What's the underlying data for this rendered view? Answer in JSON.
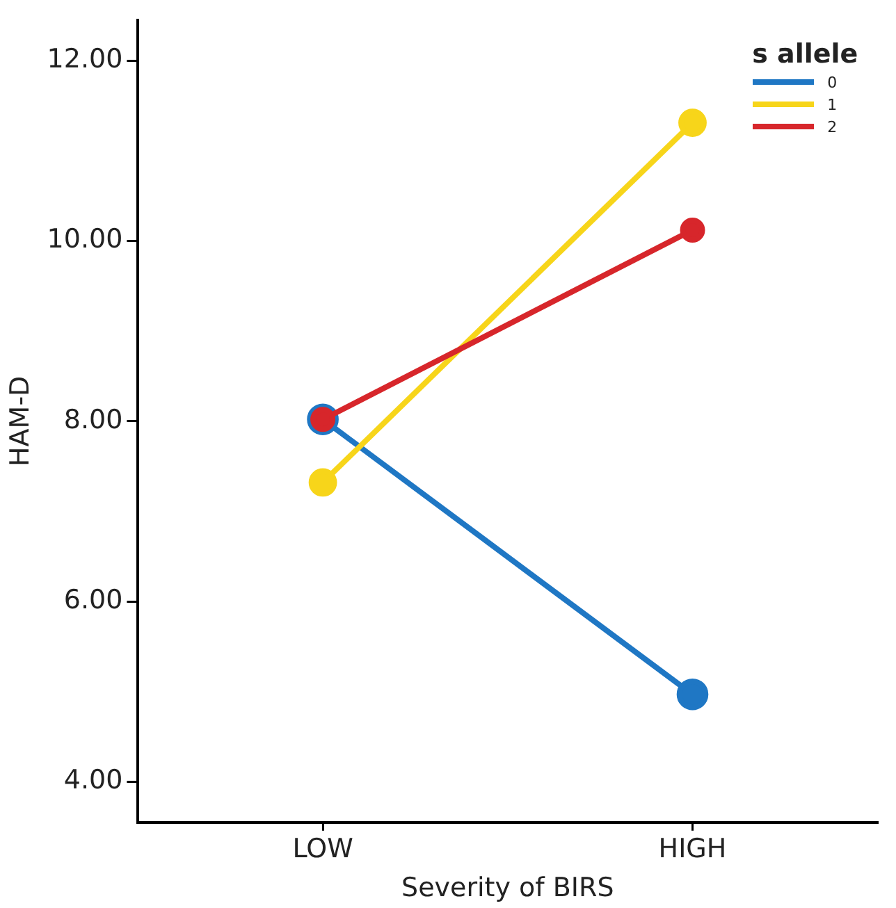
{
  "chart_data": {
    "type": "line",
    "xlabel": "Severity of BIRS",
    "ylabel": "HAM-D",
    "categories": [
      "LOW",
      "HIGH"
    ],
    "legend_title": "s allele",
    "legend": "top right",
    "marker": "circle",
    "line_style": "solid",
    "ylim": [
      3.55,
      12.45
    ],
    "yticks": [
      {
        "value": 4,
        "label": "4.00"
      },
      {
        "value": 6,
        "label": "6.00"
      },
      {
        "value": 8,
        "label": "8.00"
      },
      {
        "value": 10,
        "label": "10.00"
      },
      {
        "value": 12,
        "label": "12.00"
      }
    ],
    "series": [
      {
        "name": "0",
        "color": "#1f77c4",
        "values": [
          8.02,
          4.97
        ]
      },
      {
        "name": "1",
        "color": "#f7d51a",
        "values": [
          7.32,
          11.31
        ]
      },
      {
        "name": "2",
        "color": "#d7262b",
        "values": [
          8.02,
          10.12
        ]
      }
    ]
  }
}
